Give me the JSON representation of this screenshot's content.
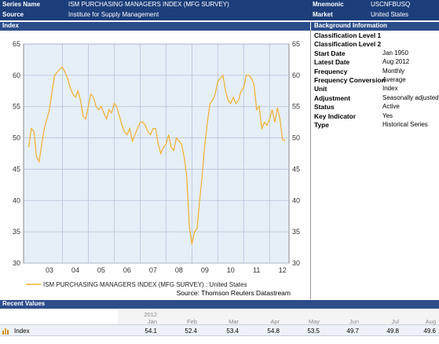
{
  "header": {
    "series_name_label": "Series Name",
    "series_name_value": "ISM PURCHASING MANAGERS INDEX (MFG SURVEY)",
    "mnemonic_label": "Mnemonic",
    "mnemonic_value": "USCNFBUSQ",
    "source_label": "Source",
    "source_value": "Institute for Supply Management",
    "market_label": "Market",
    "market_value": "United States"
  },
  "panels": {
    "index_title": "Index",
    "background_title": "Background Information",
    "recent_title": "Recent Values"
  },
  "background_info": [
    {
      "key": "Classification Level 1",
      "value": ""
    },
    {
      "key": "Classification Level 2",
      "value": ""
    },
    {
      "key": "Start Date",
      "value": "Jan 1950"
    },
    {
      "key": "Latest Date",
      "value": "Aug 2012"
    },
    {
      "key": "Frequency",
      "value": "Monthly"
    },
    {
      "key": "Frequency Conversion",
      "value": "Average"
    },
    {
      "key": "Unit",
      "value": "Index"
    },
    {
      "key": "Adjustment",
      "value": "Seasonally adjusted"
    },
    {
      "key": "Status",
      "value": "Active"
    },
    {
      "key": "Key Indicator",
      "value": "Yes"
    },
    {
      "key": "Type",
      "value": "Historical Series"
    }
  ],
  "recent_values": {
    "year": "2012",
    "months": [
      "Jan",
      "Feb",
      "Mar",
      "Apr",
      "May",
      "Jun",
      "Jul",
      "Aug"
    ],
    "row_label": "Index",
    "values": [
      "54.1",
      "52.4",
      "53.4",
      "54.8",
      "53.5",
      "49.7",
      "49.8",
      "49.6"
    ]
  },
  "colors": {
    "header_bg": "#1d3e7a",
    "line": "#f0b030",
    "plot_bg": "#e6eef8"
  },
  "chart_data": {
    "type": "line",
    "title": "",
    "legend": [
      "ISM PURCHASING MANAGERS INDEX (MFG SURVEY) : United States"
    ],
    "source_note": "Source: Thomson Reuters Datastream",
    "ylim": [
      30,
      65
    ],
    "yticks": [
      "30",
      "35",
      "40",
      "45",
      "50",
      "55",
      "60",
      "65"
    ],
    "xticks": [
      "03",
      "04",
      "05",
      "06",
      "07",
      "08",
      "09",
      "10",
      "11",
      "12"
    ],
    "grid": true,
    "series": [
      {
        "name": "ISM PURCHASING MANAGERS INDEX (MFG SURVEY) : United States",
        "x": [
          2002.7,
          2002.8,
          2002.9,
          2003.0,
          2003.1,
          2003.2,
          2003.3,
          2003.4,
          2003.5,
          2003.6,
          2003.7,
          2003.8,
          2003.9,
          2004.0,
          2004.1,
          2004.2,
          2004.3,
          2004.4,
          2004.5,
          2004.6,
          2004.7,
          2004.8,
          2004.9,
          2005.0,
          2005.1,
          2005.2,
          2005.3,
          2005.4,
          2005.5,
          2005.6,
          2005.7,
          2005.8,
          2005.9,
          2006.0,
          2006.1,
          2006.2,
          2006.3,
          2006.4,
          2006.5,
          2006.6,
          2006.7,
          2006.8,
          2006.9,
          2007.0,
          2007.1,
          2007.2,
          2007.3,
          2007.4,
          2007.5,
          2007.6,
          2007.7,
          2007.8,
          2007.9,
          2008.0,
          2008.1,
          2008.2,
          2008.3,
          2008.4,
          2008.5,
          2008.6,
          2008.7,
          2008.8,
          2008.9,
          2009.0,
          2009.1,
          2009.2,
          2009.3,
          2009.4,
          2009.5,
          2009.6,
          2009.7,
          2009.8,
          2009.9,
          2010.0,
          2010.1,
          2010.2,
          2010.3,
          2010.4,
          2010.5,
          2010.6,
          2010.7,
          2010.8,
          2010.9,
          2011.0,
          2011.1,
          2011.2,
          2011.3,
          2011.4,
          2011.5,
          2011.6,
          2011.7,
          2011.8,
          2011.9,
          2012.0,
          2012.1,
          2012.2,
          2012.3,
          2012.4,
          2012.5,
          2012.6
        ],
        "values": [
          48.5,
          51.5,
          51.0,
          47.0,
          46.2,
          49.0,
          51.5,
          53.0,
          54.5,
          57.5,
          60.0,
          60.5,
          61.0,
          61.3,
          60.5,
          59.5,
          58.0,
          57.0,
          56.5,
          57.5,
          56.0,
          53.5,
          53.0,
          55.0,
          57.0,
          56.5,
          55.0,
          54.5,
          55.0,
          54.0,
          53.0,
          54.5,
          54.0,
          55.5,
          55.0,
          53.5,
          52.0,
          51.0,
          50.5,
          51.5,
          49.5,
          50.5,
          51.5,
          52.5,
          52.5,
          52.0,
          51.0,
          50.5,
          51.5,
          51.5,
          49.0,
          47.5,
          48.5,
          49.0,
          50.5,
          48.5,
          48.0,
          50.0,
          49.5,
          49.0,
          47.0,
          44.0,
          36.0,
          33.0,
          35.0,
          35.5,
          40.0,
          44.0,
          49.0,
          52.5,
          55.5,
          56.0,
          57.0,
          59.0,
          59.5,
          60.0,
          57.5,
          56.0,
          55.5,
          56.5,
          55.5,
          56.0,
          57.5,
          58.0,
          60.0,
          60.0,
          59.5,
          58.5,
          54.5,
          55.0,
          51.5,
          52.5,
          52.0,
          53.0,
          54.5,
          52.5,
          54.8,
          53.0,
          49.7,
          49.6
        ]
      }
    ]
  }
}
